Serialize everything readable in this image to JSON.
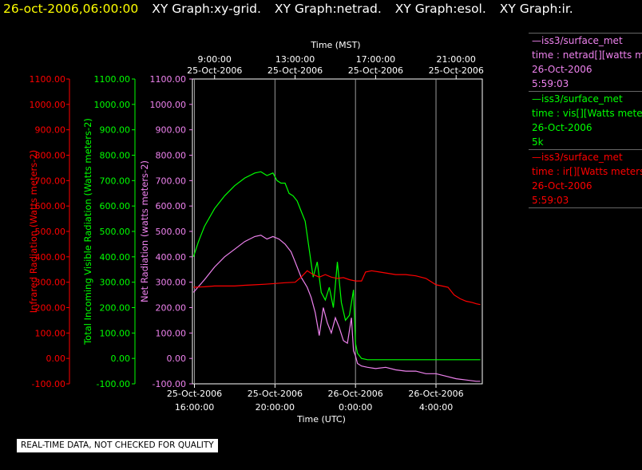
{
  "header": {
    "timestamp": "26-oct-2006,06:00:00",
    "titles": [
      "XY Graph:xy-grid.",
      "XY Graph:netrad.",
      "XY Graph:esol.",
      "XY Graph:ir."
    ]
  },
  "legend": [
    {
      "lines": [
        "—iss3/surface_met",
        "time : netrad[][watts meters-2]",
        "26-Oct-2006",
        "5:59:03"
      ],
      "color": "#ee82ee"
    },
    {
      "lines": [
        "—iss3/surface_met",
        "time : vis[][Watts meters-2]",
        "26-Oct-2006",
        "5k"
      ],
      "color": "#00ff00"
    },
    {
      "lines": [
        "—iss3/surface_met",
        "time : ir[][Watts meters-2]",
        "26-Oct-2006",
        "5:59:03"
      ],
      "color": "#ff0000"
    }
  ],
  "notice": "REAL-TIME DATA, NOT CHECKED FOR QUALITY",
  "chart_data": {
    "type": "line",
    "title": "",
    "top_axis": {
      "label": "Time (MST)",
      "ticks": [
        {
          "x": 17,
          "line1": "9:00:00",
          "line2": "25-Oct-2006"
        },
        {
          "x": 21,
          "line1": "13:00:00",
          "line2": "25-Oct-2006"
        },
        {
          "x": 25,
          "line1": "17:00:00",
          "line2": "25-Oct-2006"
        },
        {
          "x": 29,
          "line1": "21:00:00",
          "line2": "25-Oct-2006"
        }
      ]
    },
    "bottom_axis": {
      "label": "Time (UTC)",
      "ticks": [
        {
          "x": 16,
          "line1": "25-Oct-2006",
          "line2": "16:00:00"
        },
        {
          "x": 20,
          "line1": "25-Oct-2006",
          "line2": "20:00:00"
        },
        {
          "x": 24,
          "line1": "26-Oct-2006",
          "line2": "0:00:00"
        },
        {
          "x": 28,
          "line1": "26-Oct-2006",
          "line2": "4:00:00"
        }
      ]
    },
    "xlim": [
      15.9,
      30.3
    ],
    "ylim": [
      -100,
      1100
    ],
    "y_ticks": [
      "1100.00",
      "1000.00",
      "900.00",
      "800.00",
      "700.00",
      "600.00",
      "500.00",
      "400.00",
      "300.00",
      "200.00",
      "100.00",
      "0.00",
      "-100.00"
    ],
    "y_axes": [
      {
        "label": "Infrared Radiation (Watts meters-2)",
        "color": "#ff0000"
      },
      {
        "label": "Total Incoming Visible Radiation (Watts meters-2)",
        "color": "#00ff00"
      },
      {
        "label": "Net Radiation (watts meters-2)",
        "color": "#ee82ee"
      }
    ],
    "series": [
      {
        "name": "netrad",
        "color": "#ee82ee",
        "x": [
          15.95,
          16.5,
          17,
          17.5,
          18,
          18.5,
          19,
          19.3,
          19.6,
          19.9,
          20.2,
          20.5,
          20.8,
          21.0,
          21.3,
          21.6,
          21.8,
          22.0,
          22.2,
          22.4,
          22.6,
          22.8,
          23.0,
          23.2,
          23.4,
          23.6,
          23.8,
          23.9,
          24.0,
          24.1,
          24.3,
          24.6,
          25.0,
          25.5,
          26.0,
          26.5,
          27.0,
          27.5,
          28.0,
          28.5,
          29.0,
          29.5,
          30.0,
          30.2
        ],
        "y": [
          260,
          310,
          360,
          400,
          430,
          460,
          480,
          485,
          470,
          480,
          470,
          450,
          420,
          380,
          320,
          280,
          240,
          180,
          90,
          200,
          140,
          100,
          160,
          120,
          70,
          60,
          160,
          30,
          10,
          -20,
          -30,
          -35,
          -40,
          -35,
          -45,
          -50,
          -50,
          -60,
          -60,
          -70,
          -80,
          -85,
          -90,
          -90
        ]
      },
      {
        "name": "vis",
        "color": "#00ff00",
        "x": [
          15.95,
          16.2,
          16.5,
          17,
          17.5,
          18,
          18.5,
          19,
          19.3,
          19.6,
          19.9,
          20.1,
          20.3,
          20.5,
          20.7,
          20.9,
          21.1,
          21.3,
          21.5,
          21.7,
          21.9,
          22.1,
          22.3,
          22.5,
          22.7,
          22.9,
          23.1,
          23.3,
          23.5,
          23.7,
          23.9,
          24.0,
          24.1,
          24.3,
          24.6,
          25,
          26,
          27,
          28,
          29,
          30,
          30.2
        ],
        "y": [
          400,
          460,
          520,
          590,
          640,
          680,
          710,
          730,
          735,
          720,
          730,
          700,
          690,
          690,
          650,
          640,
          620,
          580,
          540,
          430,
          320,
          380,
          260,
          230,
          280,
          200,
          380,
          220,
          150,
          170,
          270,
          60,
          20,
          0,
          -5,
          -5,
          -5,
          -5,
          -5,
          -5,
          -5,
          -5
        ]
      },
      {
        "name": "ir",
        "color": "#ff0000",
        "x": [
          15.95,
          16.5,
          17,
          17.5,
          18,
          18.5,
          19,
          19.5,
          20,
          20.5,
          21,
          21.3,
          21.6,
          21.9,
          22.2,
          22.5,
          22.8,
          23.1,
          23.4,
          23.7,
          24.0,
          24.3,
          24.5,
          24.8,
          25.2,
          25.6,
          26,
          26.5,
          27,
          27.5,
          28,
          28.3,
          28.6,
          28.9,
          29.2,
          29.5,
          29.8,
          30,
          30.2
        ],
        "y": [
          280,
          282,
          285,
          285,
          285,
          288,
          290,
          292,
          295,
          298,
          300,
          320,
          345,
          330,
          320,
          330,
          320,
          315,
          318,
          310,
          305,
          305,
          340,
          345,
          340,
          335,
          330,
          330,
          325,
          315,
          290,
          285,
          280,
          250,
          235,
          225,
          220,
          215,
          212
        ]
      }
    ]
  }
}
